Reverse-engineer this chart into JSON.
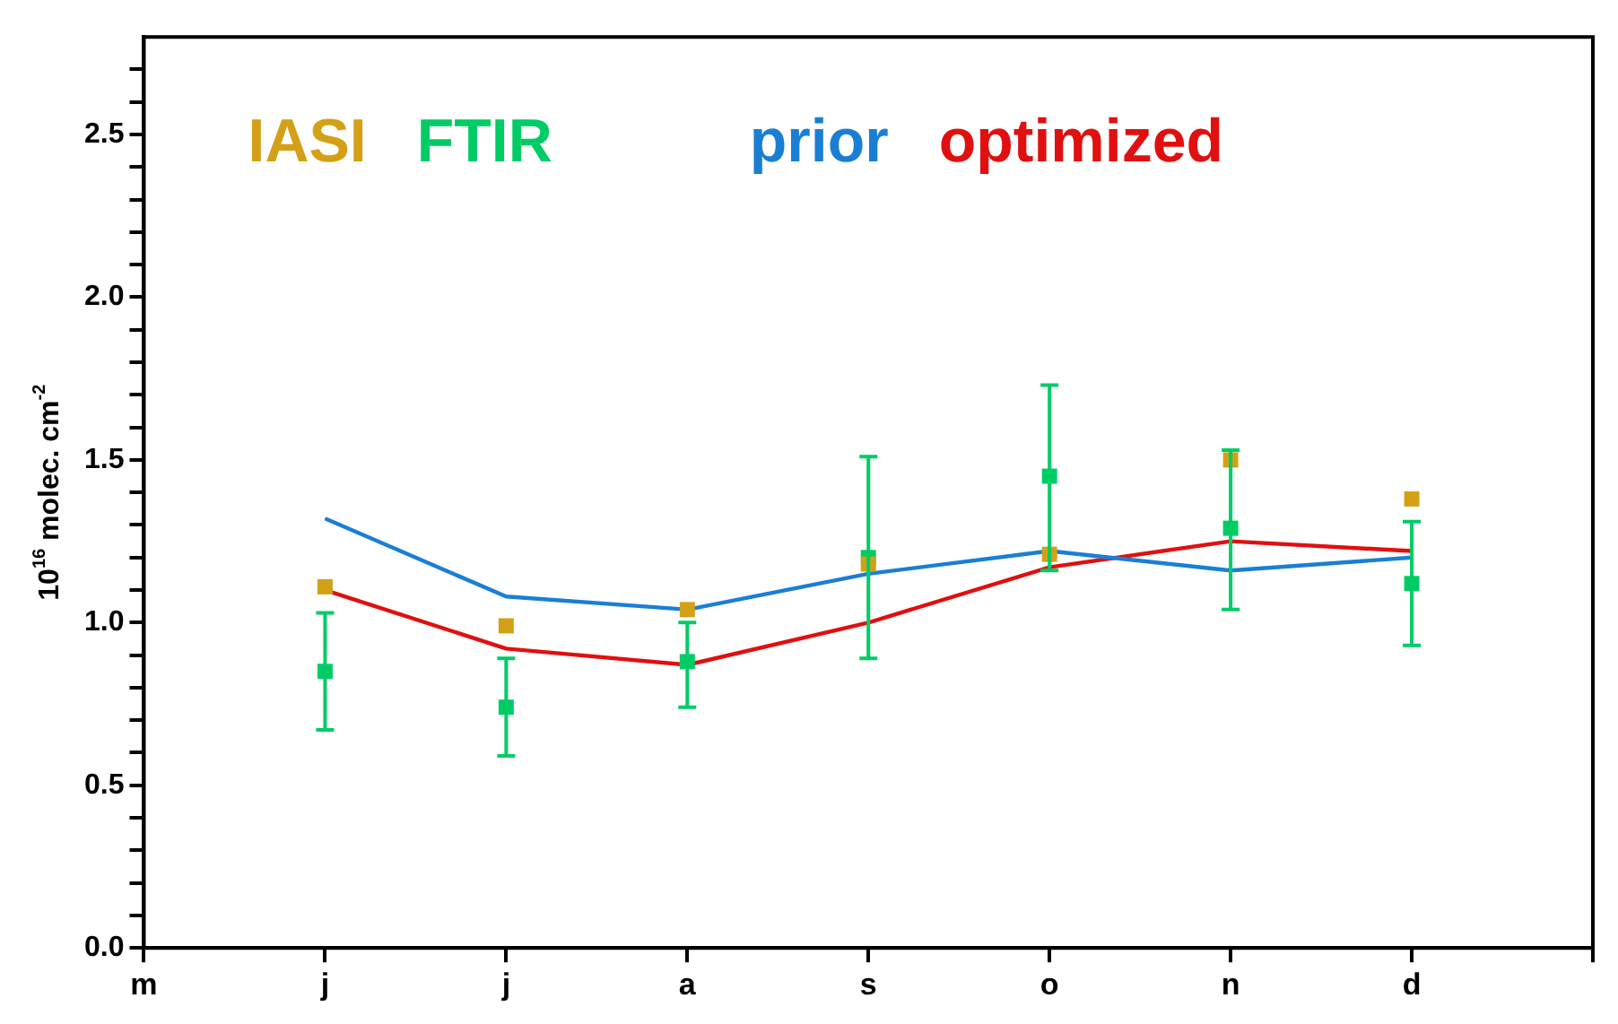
{
  "chart_data": {
    "type": "line",
    "ylabel": "10$^{16}$ molec. cm$^{-2}$",
    "categories": [
      "m",
      "j",
      "j",
      "a",
      "s",
      "o",
      "n",
      "d",
      null
    ],
    "ylim": [
      0,
      2.8
    ],
    "yticks": [
      {
        "value": 0,
        "label": "0.0"
      },
      {
        "value": 0.1,
        "label": null
      },
      {
        "value": 0.2,
        "label": null
      },
      {
        "value": 0.3,
        "label": null
      },
      {
        "value": 0.4,
        "label": null
      },
      {
        "value": 0.5,
        "label": "0.5"
      },
      {
        "value": 0.6,
        "label": null
      },
      {
        "value": 0.7,
        "label": null
      },
      {
        "value": 0.8,
        "label": null
      },
      {
        "value": 0.9,
        "label": null
      },
      {
        "value": 1,
        "label": "1.0"
      },
      {
        "value": 1.1,
        "label": null
      },
      {
        "value": 1.2,
        "label": null
      },
      {
        "value": 1.3,
        "label": null
      },
      {
        "value": 1.4,
        "label": null
      },
      {
        "value": 1.5,
        "label": "1.5"
      },
      {
        "value": 1.6,
        "label": null
      },
      {
        "value": 1.7,
        "label": null
      },
      {
        "value": 1.8,
        "label": null
      },
      {
        "value": 1.9,
        "label": null
      },
      {
        "value": 2,
        "label": "2.0"
      },
      {
        "value": 2.1,
        "label": null
      },
      {
        "value": 2.2,
        "label": null
      },
      {
        "value": 2.3,
        "label": null
      },
      {
        "value": 2.4,
        "label": null
      },
      {
        "value": 2.5,
        "label": "2.5"
      },
      {
        "value": 2.6,
        "label": null
      },
      {
        "value": 2.7,
        "label": null
      }
    ],
    "grid": false,
    "legend": "top",
    "line_style": "solid",
    "series": [
      {
        "name": "IASI",
        "type": "scatter",
        "marker": "square",
        "color": "#d4a017",
        "values": [
          null,
          1.11,
          0.99,
          1.04,
          1.18,
          1.21,
          1.5,
          1.38,
          null
        ]
      },
      {
        "name": "FTIR",
        "type": "scatter",
        "marker": "square",
        "color": "#00cc66",
        "values": [
          null,
          0.85,
          0.74,
          0.88,
          1.2,
          1.45,
          1.29,
          1.12,
          null
        ],
        "errors": [
          null,
          [
            0.67,
            1.03
          ],
          [
            0.59,
            0.89
          ],
          [
            0.74,
            1.0
          ],
          [
            0.89,
            1.51
          ],
          [
            1.16,
            1.73
          ],
          [
            1.04,
            1.53
          ],
          [
            0.93,
            1.31
          ],
          null
        ]
      },
      {
        "name": "prior",
        "marker": "none",
        "color": "#1a7fd4",
        "values": [
          null,
          1.32,
          1.08,
          1.04,
          1.15,
          1.22,
          1.16,
          1.2,
          null
        ]
      },
      {
        "name": "optimized",
        "marker": "none",
        "color": "#e01010",
        "values": [
          null,
          1.1,
          0.92,
          0.87,
          1.0,
          1.17,
          1.25,
          1.22,
          null
        ]
      }
    ]
  }
}
